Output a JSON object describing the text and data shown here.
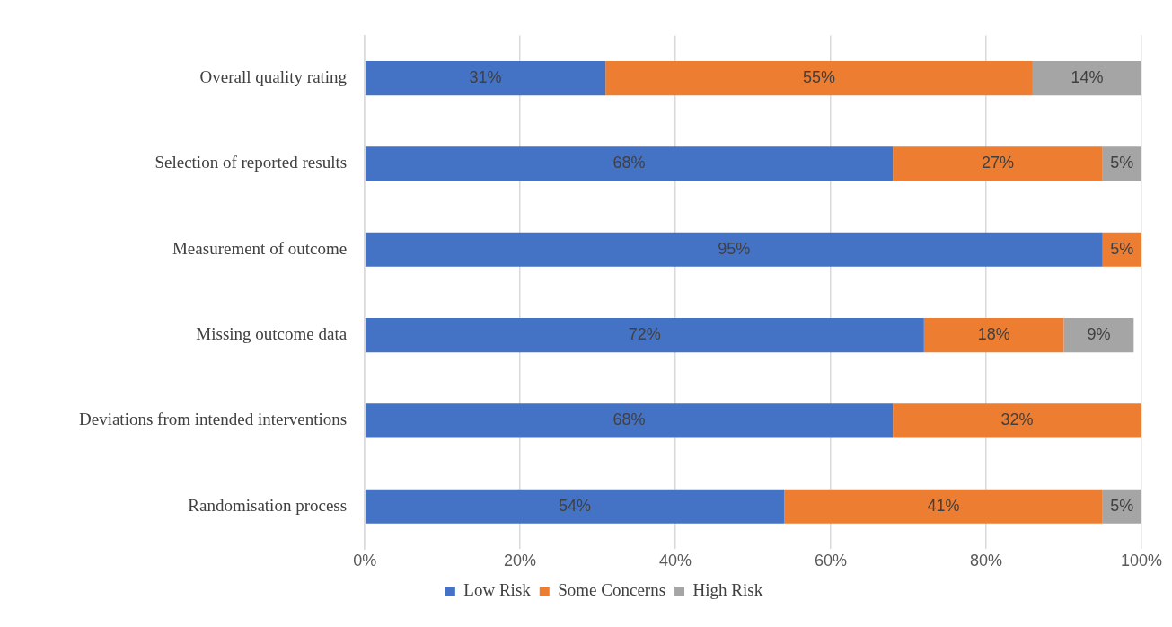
{
  "chart_data": {
    "type": "bar",
    "orientation": "horizontal",
    "stacked": true,
    "categories": [
      "Overall quality rating",
      "Selection of reported results",
      "Measurement of outcome",
      "Missing outcome data",
      "Deviations from intended interventions",
      "Randomisation process"
    ],
    "series": [
      {
        "name": "Low Risk",
        "color": "#4472c4",
        "values": [
          31,
          68,
          95,
          72,
          68,
          54
        ],
        "value_labels": [
          "31%",
          "68%",
          "95%",
          "72%",
          "68%",
          "54%"
        ]
      },
      {
        "name": "Some Concerns",
        "color": "#ed7d31",
        "values": [
          55,
          27,
          5,
          18,
          32,
          41
        ],
        "value_labels": [
          "55%",
          "27%",
          "5%",
          "18%",
          "32%",
          "41%"
        ]
      },
      {
        "name": "High Risk",
        "color": "#a5a5a5",
        "values": [
          14,
          5,
          null,
          9,
          null,
          5
        ],
        "value_labels": [
          "14%",
          "5%",
          null,
          "9%",
          null,
          "5%"
        ]
      }
    ],
    "xlim": [
      0,
      100
    ],
    "xticks": [
      {
        "value": 0,
        "label": "0%"
      },
      {
        "value": 20,
        "label": "20%"
      },
      {
        "value": 40,
        "label": "40%"
      },
      {
        "value": 60,
        "label": "60%"
      },
      {
        "value": 80,
        "label": "80%"
      },
      {
        "value": 100,
        "label": "100%"
      }
    ],
    "grid": "x",
    "legend": "bottom"
  }
}
